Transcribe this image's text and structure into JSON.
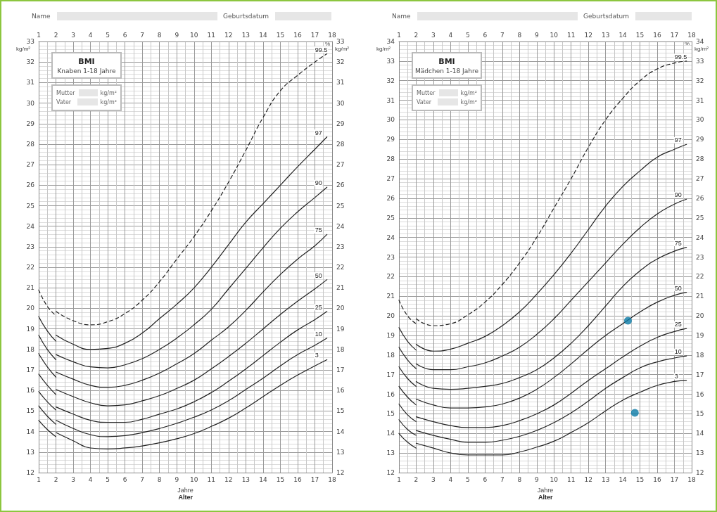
{
  "chart_data": [
    {
      "type": "line",
      "title": "BMI",
      "subtitle": "Knaben 1-18 Jahre",
      "xlabel": "Jahre",
      "ylabel": "kg/m²",
      "y2label": "kg/m²",
      "legend_title": "%",
      "annotations": [
        "Name",
        "Geburtsdatum",
        "Mutter",
        "Vater",
        "kg/m²",
        "kg/m²",
        "Alter"
      ],
      "x": [
        2,
        3,
        4,
        5,
        6,
        7,
        8,
        9,
        10,
        11,
        12,
        13,
        14,
        15,
        16,
        17,
        17.7
      ],
      "series": [
        {
          "color": "#222222",
          "x": [
            1,
            1.5,
            2
          ],
          "values": [
            14.55,
            14.1,
            13.75
          ]
        },
        {
          "color": "#222222",
          "x": [
            1,
            1.5,
            2
          ],
          "values": [
            15.25,
            14.75,
            14.35
          ]
        },
        {
          "color": "#222222",
          "x": [
            1,
            1.5,
            2
          ],
          "values": [
            15.95,
            15.45,
            15.05
          ]
        },
        {
          "color": "#222222",
          "x": [
            1,
            1.5,
            2
          ],
          "values": [
            16.8,
            16.25,
            15.8
          ]
        },
        {
          "color": "#222222",
          "x": [
            1,
            1.5,
            2
          ],
          "values": [
            17.8,
            17.15,
            16.65
          ]
        },
        {
          "color": "#222222",
          "x": [
            1,
            1.5,
            2
          ],
          "values": [
            18.7,
            18.0,
            17.5
          ]
        },
        {
          "color": "#222222",
          "x": [
            1,
            1.5,
            2
          ],
          "values": [
            19.6,
            18.9,
            18.4
          ]
        },
        {
          "color": "#222222",
          "line_style": "dashed",
          "x": [
            1,
            1.5,
            2
          ],
          "values": [
            20.9,
            20.1,
            19.65
          ]
        },
        {
          "name": "3",
          "color": "#222222",
          "values": [
            13.95,
            13.55,
            13.2,
            13.15,
            13.2,
            13.3,
            13.45,
            13.65,
            13.9,
            14.25,
            14.65,
            15.15,
            15.7,
            16.25,
            16.75,
            17.2,
            17.5
          ]
        },
        {
          "name": "10",
          "color": "#222222",
          "values": [
            14.55,
            14.15,
            13.85,
            13.75,
            13.8,
            13.95,
            14.15,
            14.4,
            14.7,
            15.05,
            15.5,
            16.05,
            16.6,
            17.2,
            17.75,
            18.2,
            18.55
          ]
        },
        {
          "name": "25",
          "color": "#222222",
          "values": [
            15.2,
            14.85,
            14.55,
            14.45,
            14.45,
            14.6,
            14.85,
            15.1,
            15.45,
            15.9,
            16.45,
            17.05,
            17.7,
            18.35,
            18.95,
            19.45,
            19.85
          ]
        },
        {
          "name": "50",
          "color": "#222222",
          "values": [
            16.05,
            15.7,
            15.4,
            15.25,
            15.3,
            15.5,
            15.75,
            16.1,
            16.5,
            17.05,
            17.65,
            18.3,
            19.0,
            19.7,
            20.35,
            20.95,
            21.4
          ]
        },
        {
          "name": "75",
          "color": "#222222",
          "values": [
            16.9,
            16.55,
            16.25,
            16.15,
            16.25,
            16.5,
            16.85,
            17.3,
            17.8,
            18.45,
            19.1,
            19.9,
            20.8,
            21.65,
            22.4,
            23.05,
            23.6
          ]
        },
        {
          "name": "90",
          "color": "#222222",
          "values": [
            17.75,
            17.4,
            17.15,
            17.1,
            17.25,
            17.55,
            18.0,
            18.55,
            19.2,
            19.95,
            20.95,
            21.95,
            22.95,
            23.9,
            24.7,
            25.4,
            25.9
          ]
        },
        {
          "name": "97",
          "color": "#222222",
          "values": [
            18.7,
            18.25,
            18.0,
            18.05,
            18.3,
            18.8,
            19.5,
            20.2,
            21.0,
            22.0,
            23.1,
            24.2,
            25.1,
            26.0,
            26.9,
            27.75,
            28.35
          ]
        },
        {
          "name": "99.5",
          "color": "#222222",
          "line_style": "dashed",
          "values": [
            19.85,
            19.4,
            19.2,
            19.35,
            19.75,
            20.4,
            21.3,
            22.4,
            23.5,
            24.75,
            26.15,
            27.7,
            29.3,
            30.6,
            31.35,
            32.0,
            32.4
          ]
        }
      ],
      "xlim": [
        1,
        18
      ],
      "xticks": [
        1,
        2,
        3,
        4,
        5,
        6,
        7,
        8,
        9,
        10,
        11,
        12,
        13,
        14,
        15,
        16,
        17,
        18
      ],
      "x2lim": [
        1,
        18
      ],
      "x2ticks": [
        1,
        2,
        3,
        4,
        5,
        6,
        7,
        8,
        9,
        10,
        11,
        12,
        13,
        14,
        15,
        16,
        17,
        18
      ],
      "ylim": [
        12,
        33
      ],
      "yticks": [
        12,
        13,
        14,
        15,
        16,
        17,
        18,
        19,
        20,
        21,
        22,
        23,
        24,
        25,
        26,
        27,
        28,
        29,
        30,
        31,
        32,
        33
      ],
      "y2lim": [
        12,
        33
      ],
      "y2ticks": [
        12,
        13,
        14,
        15,
        16,
        17,
        18,
        19,
        20,
        21,
        22,
        23,
        24,
        25,
        26,
        27,
        28,
        29,
        30,
        31,
        32,
        33
      ],
      "grid": true,
      "marker": "none",
      "line_style": "solid"
    },
    {
      "type": "line",
      "title": "BMI",
      "subtitle": "Mädchen 1-18 Jahre",
      "xlabel": "Jahre",
      "ylabel": "kg/m²",
      "y2label": "kg/m²",
      "legend_title": "%",
      "annotations": [
        "Name",
        "Geburtsdatum",
        "Mutter",
        "Vater",
        "kg/m²",
        "kg/m²",
        "Alter"
      ],
      "x": [
        2,
        3,
        4,
        5,
        6,
        7,
        8,
        9,
        10,
        11,
        12,
        13,
        14,
        15,
        16,
        17,
        17.7
      ],
      "series": [
        {
          "color": "#222222",
          "x": [
            1,
            1.5,
            2
          ],
          "values": [
            14.0,
            13.55,
            13.25
          ]
        },
        {
          "color": "#222222",
          "x": [
            1,
            1.5,
            2
          ],
          "values": [
            14.7,
            14.2,
            13.9
          ]
        },
        {
          "color": "#222222",
          "x": [
            1,
            1.5,
            2
          ],
          "values": [
            15.5,
            14.95,
            14.6
          ]
        },
        {
          "color": "#222222",
          "x": [
            1,
            1.5,
            2
          ],
          "values": [
            16.4,
            15.85,
            15.45
          ]
        },
        {
          "color": "#222222",
          "x": [
            1,
            1.5,
            2
          ],
          "values": [
            17.4,
            16.8,
            16.4
          ]
        },
        {
          "color": "#222222",
          "x": [
            1,
            1.5,
            2
          ],
          "values": [
            18.4,
            17.75,
            17.3
          ]
        },
        {
          "color": "#222222",
          "x": [
            1,
            1.5,
            2
          ],
          "values": [
            19.4,
            18.7,
            18.25
          ]
        },
        {
          "color": "#222222",
          "line_style": "dashed",
          "x": [
            1,
            1.5,
            2
          ],
          "values": [
            20.8,
            20.0,
            19.6
          ]
        },
        {
          "name": "3",
          "color": "#222222",
          "values": [
            13.5,
            13.25,
            13.0,
            12.9,
            12.9,
            12.9,
            13.05,
            13.3,
            13.6,
            14.05,
            14.55,
            15.15,
            15.7,
            16.1,
            16.45,
            16.65,
            16.7
          ]
        },
        {
          "name": "10",
          "color": "#222222",
          "values": [
            14.15,
            13.9,
            13.7,
            13.55,
            13.55,
            13.65,
            13.85,
            14.15,
            14.55,
            15.05,
            15.65,
            16.3,
            16.85,
            17.35,
            17.65,
            17.85,
            17.95
          ]
        },
        {
          "name": "25",
          "color": "#222222",
          "values": [
            14.85,
            14.6,
            14.4,
            14.3,
            14.3,
            14.4,
            14.65,
            15.0,
            15.45,
            16.05,
            16.7,
            17.3,
            17.9,
            18.45,
            18.9,
            19.2,
            19.35
          ]
        },
        {
          "name": "50",
          "color": "#222222",
          "values": [
            15.75,
            15.45,
            15.3,
            15.3,
            15.35,
            15.5,
            15.8,
            16.25,
            16.85,
            17.55,
            18.3,
            19.0,
            19.6,
            20.2,
            20.7,
            21.05,
            21.2
          ]
        },
        {
          "name": "75",
          "color": "#222222",
          "values": [
            16.65,
            16.3,
            16.25,
            16.3,
            16.4,
            16.55,
            16.85,
            17.25,
            17.85,
            18.6,
            19.5,
            20.5,
            21.5,
            22.3,
            22.9,
            23.3,
            23.5
          ]
        },
        {
          "name": "90",
          "color": "#222222",
          "values": [
            17.55,
            17.25,
            17.25,
            17.4,
            17.6,
            17.95,
            18.4,
            19.05,
            19.85,
            20.8,
            21.75,
            22.7,
            23.65,
            24.5,
            25.2,
            25.7,
            25.95
          ]
        },
        {
          "name": "97",
          "color": "#222222",
          "values": [
            18.55,
            18.2,
            18.3,
            18.6,
            18.95,
            19.5,
            20.2,
            21.1,
            22.1,
            23.2,
            24.4,
            25.6,
            26.6,
            27.4,
            28.1,
            28.5,
            28.75
          ]
        },
        {
          "name": "99.5",
          "color": "#222222",
          "line_style": "dashed",
          "values": [
            19.85,
            19.5,
            19.6,
            20.05,
            20.7,
            21.6,
            22.7,
            24.0,
            25.5,
            27.0,
            28.6,
            30.0,
            31.1,
            32.0,
            32.6,
            32.9,
            33.0
          ]
        },
        {
          "type": "scatter",
          "color": "#0a7aa6",
          "marker": "circle",
          "x": [
            14.3,
            14.7
          ],
          "values": [
            19.75,
            15.05
          ]
        }
      ],
      "xlim": [
        1,
        18
      ],
      "xticks": [
        1,
        2,
        3,
        4,
        5,
        6,
        7,
        8,
        9,
        10,
        11,
        12,
        13,
        14,
        15,
        16,
        17,
        18
      ],
      "x2lim": [
        1,
        18
      ],
      "x2ticks": [
        1,
        2,
        3,
        4,
        5,
        6,
        7,
        8,
        9,
        10,
        11,
        12,
        13,
        14,
        15,
        16,
        17,
        18
      ],
      "ylim": [
        12,
        34
      ],
      "yticks": [
        12,
        13,
        14,
        15,
        16,
        17,
        18,
        19,
        20,
        21,
        22,
        23,
        24,
        25,
        26,
        27,
        28,
        29,
        30,
        31,
        32,
        33,
        34
      ],
      "y2lim": [
        12,
        34
      ],
      "y2ticks": [
        12,
        13,
        14,
        15,
        16,
        17,
        18,
        19,
        20,
        21,
        22,
        23,
        24,
        25,
        26,
        27,
        28,
        29,
        30,
        31,
        32,
        33,
        34
      ],
      "grid": true,
      "marker": "none",
      "line_style": "solid"
    }
  ]
}
